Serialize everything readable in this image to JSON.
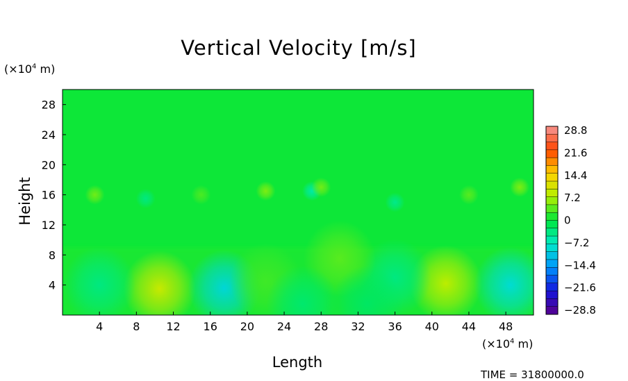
{
  "chart_data": {
    "type": "heatmap",
    "title": "Vertical Velocity [m/s]",
    "xlabel": "Length",
    "ylabel": "Height",
    "x_unit": "(×10⁴ m)",
    "y_unit": "(×10⁴ m)",
    "x_ticks": [
      4,
      8,
      12,
      16,
      20,
      24,
      28,
      32,
      36,
      40,
      44,
      48
    ],
    "y_ticks": [
      4,
      8,
      12,
      16,
      20,
      24,
      28
    ],
    "xlim": [
      0,
      51
    ],
    "ylim": [
      0,
      30
    ],
    "colorbar": {
      "ticks": [
        "28.8",
        "21.6",
        "14.4",
        "7.2",
        "0",
        "−7.2",
        "−14.4",
        "−21.6",
        "−28.8"
      ],
      "range": [
        -28.8,
        28.8
      ],
      "levels": 24
    },
    "features": [
      {
        "x": 10.5,
        "y": 3.5,
        "value": 9.0
      },
      {
        "x": 41.5,
        "y": 4.2,
        "value": 8.0
      },
      {
        "x": 17.5,
        "y": 3.6,
        "value": -9.0
      },
      {
        "x": 48.5,
        "y": 4.0,
        "value": -8.5
      },
      {
        "x": 4.0,
        "y": 4.0,
        "value": -3.5
      },
      {
        "x": 36.0,
        "y": 5.0,
        "value": -3.5
      },
      {
        "x": 30.0,
        "y": 7.5,
        "value": 3.5
      },
      {
        "x": 22.0,
        "y": 4.5,
        "value": 2.5
      },
      {
        "x": 26.0,
        "y": 1.5,
        "value": -2.5
      },
      {
        "x": 33.0,
        "y": 1.5,
        "value": -2.0
      },
      {
        "x": 27.0,
        "y": 16.5,
        "value": -5.5
      },
      {
        "x": 22.0,
        "y": 16.5,
        "value": 5.0
      },
      {
        "x": 28.0,
        "y": 17.0,
        "value": 4.5
      },
      {
        "x": 3.5,
        "y": 16.0,
        "value": 4.5
      },
      {
        "x": 49.5,
        "y": 17.0,
        "value": 5.0
      },
      {
        "x": 9.0,
        "y": 15.5,
        "value": -3.5
      },
      {
        "x": 36.0,
        "y": 15.0,
        "value": -4.0
      },
      {
        "x": 15.0,
        "y": 16.0,
        "value": 3.0
      },
      {
        "x": 44.0,
        "y": 16.0,
        "value": 3.5
      }
    ]
  },
  "time_label": "TIME = 31800000.0"
}
